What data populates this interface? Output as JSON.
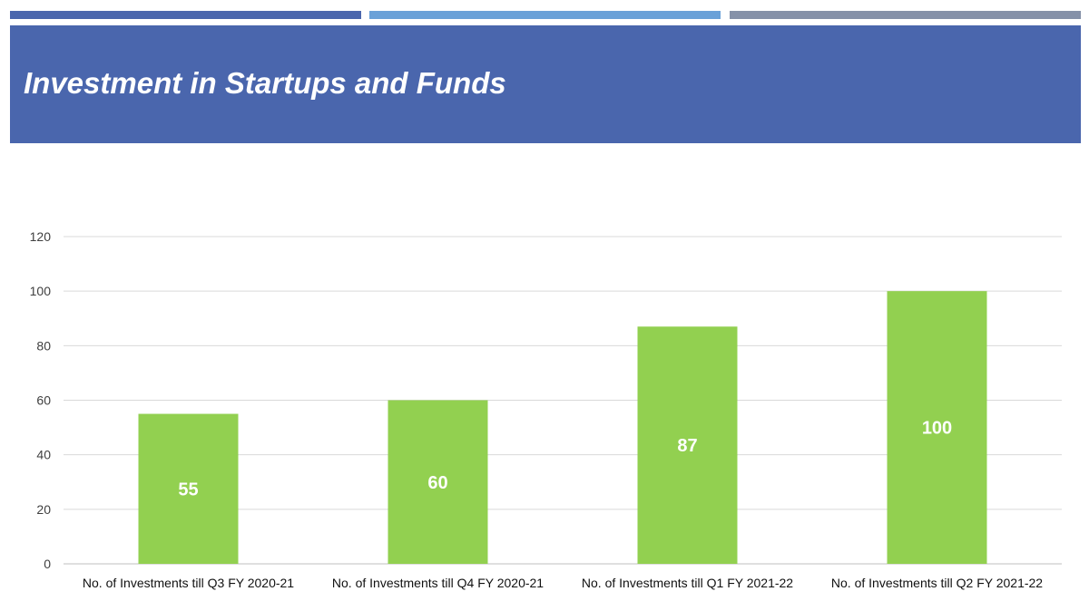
{
  "slide": {
    "title": "Investment in Startups and Funds",
    "colors": {
      "banner": "#4a66ad",
      "top_bar_1": "#4a66ad",
      "top_bar_2": "#6aa1d8",
      "top_bar_3": "#8591a8",
      "bar": "#92d050",
      "grid": "#d9d9d9"
    }
  },
  "chart_data": {
    "type": "bar",
    "title": "",
    "xlabel": "",
    "ylabel": "",
    "categories": [
      "No. of Investments till Q3 FY 2020-21",
      "No. of Investments till Q4 FY 2020-21",
      "No. of Investments till Q1 FY 2021-22",
      "No. of Investments till Q2 FY 2021-22"
    ],
    "values": [
      55,
      60,
      87,
      100
    ],
    "data_labels": [
      "55",
      "60",
      "87",
      "100"
    ],
    "ylim": [
      0,
      120
    ],
    "yticks": [
      "0",
      "20",
      "40",
      "60",
      "80",
      "100",
      "120"
    ],
    "grid": true,
    "legend": "none"
  }
}
